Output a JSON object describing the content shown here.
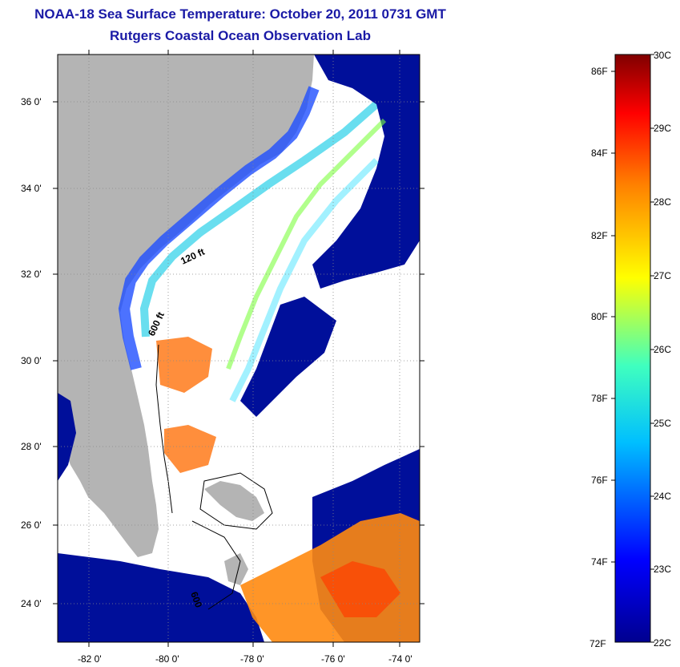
{
  "title": "NOAA-18 Sea Surface Temperature:  October 20, 2011 0731 GMT",
  "subtitle": "Rutgers Coastal Ocean Observation Lab",
  "map": {
    "lat_ticks": [
      "36 0'",
      "34 0'",
      "32 0'",
      "30 0'",
      "28 0'",
      "26 0'",
      "24 0'"
    ],
    "lon_ticks": [
      "-82 0'",
      "-80 0'",
      "-78 0'",
      "-76 0'",
      "-74 0'"
    ],
    "contour_labels": [
      "120 ft",
      "600 ft",
      "600"
    ],
    "colors": {
      "land": "#b4b4b4",
      "nodata": "#ffffff"
    }
  },
  "colorbar": {
    "fahrenheit": [
      "86F",
      "84F",
      "82F",
      "80F",
      "78F",
      "76F",
      "74F",
      "72F"
    ],
    "celsius": [
      "30C",
      "29C",
      "28C",
      "27C",
      "26C",
      "25C",
      "24C",
      "23C",
      "22C"
    ],
    "colors": [
      "#00008f",
      "#0000ff",
      "#00bfff",
      "#3fffbf",
      "#ffff00",
      "#ff7f00",
      "#ff0000",
      "#800000"
    ]
  }
}
